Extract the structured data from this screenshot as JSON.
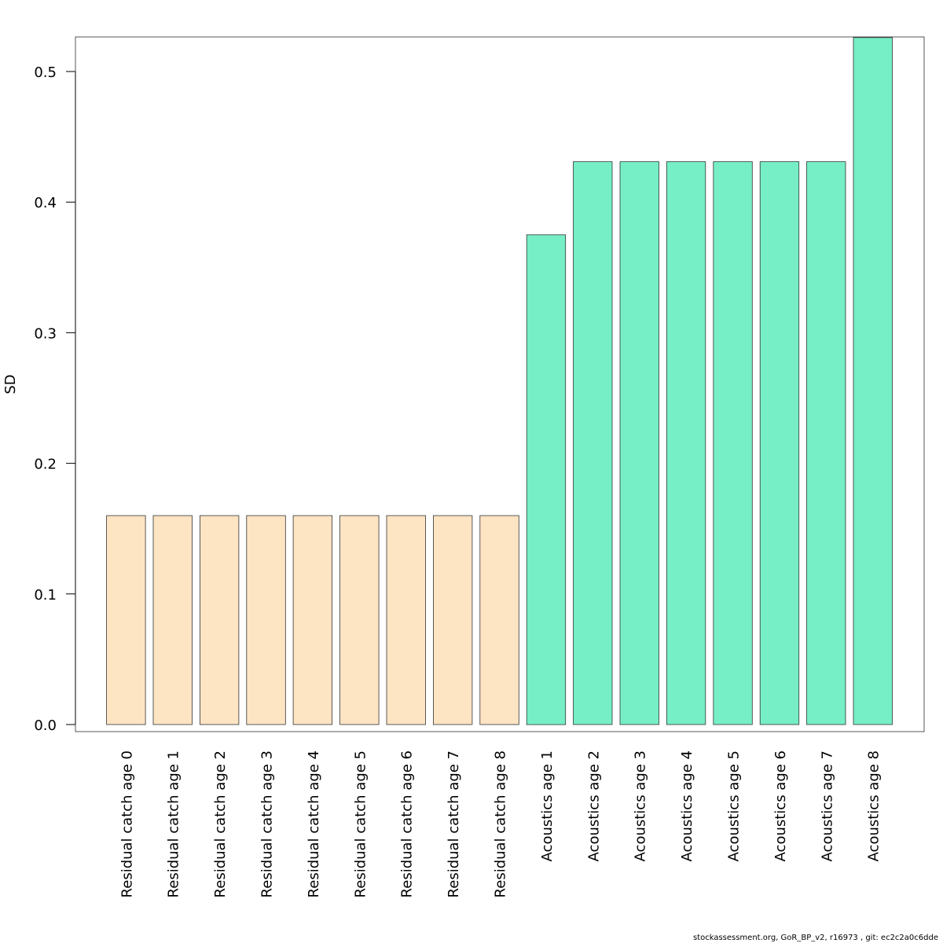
{
  "chart_data": {
    "type": "bar",
    "title": "",
    "xlabel": "",
    "ylabel": "SD",
    "ylim": [
      0,
      0.5
    ],
    "y_ticks": [
      "0.0",
      "0.1",
      "0.2",
      "0.3",
      "0.4",
      "0.5"
    ],
    "categories": [
      "Residual catch age 0",
      "Residual catch age 1",
      "Residual catch age 2",
      "Residual catch age 3",
      "Residual catch age 4",
      "Residual catch age 5",
      "Residual catch age 6",
      "Residual catch age 7",
      "Residual catch age 8",
      "Acoustics age 1",
      "Acoustics age 2",
      "Acoustics age 3",
      "Acoustics age 4",
      "Acoustics age 5",
      "Acoustics age 6",
      "Acoustics age 7",
      "Acoustics age 8"
    ],
    "values": [
      0.16,
      0.16,
      0.16,
      0.16,
      0.16,
      0.16,
      0.16,
      0.16,
      0.16,
      0.375,
      0.431,
      0.431,
      0.431,
      0.431,
      0.431,
      0.431,
      0.526
    ],
    "bar_colors": [
      "#FDE4C3",
      "#FDE4C3",
      "#FDE4C3",
      "#FDE4C3",
      "#FDE4C3",
      "#FDE4C3",
      "#FDE4C3",
      "#FDE4C3",
      "#FDE4C3",
      "#76EEC6",
      "#76EEC6",
      "#76EEC6",
      "#76EEC6",
      "#76EEC6",
      "#76EEC6",
      "#76EEC6",
      "#76EEC6"
    ],
    "grid": false,
    "legend": "none"
  },
  "footer": "stockassessment.org, GoR_BP_v2, r16973 , git: ec2c2a0c6dde"
}
